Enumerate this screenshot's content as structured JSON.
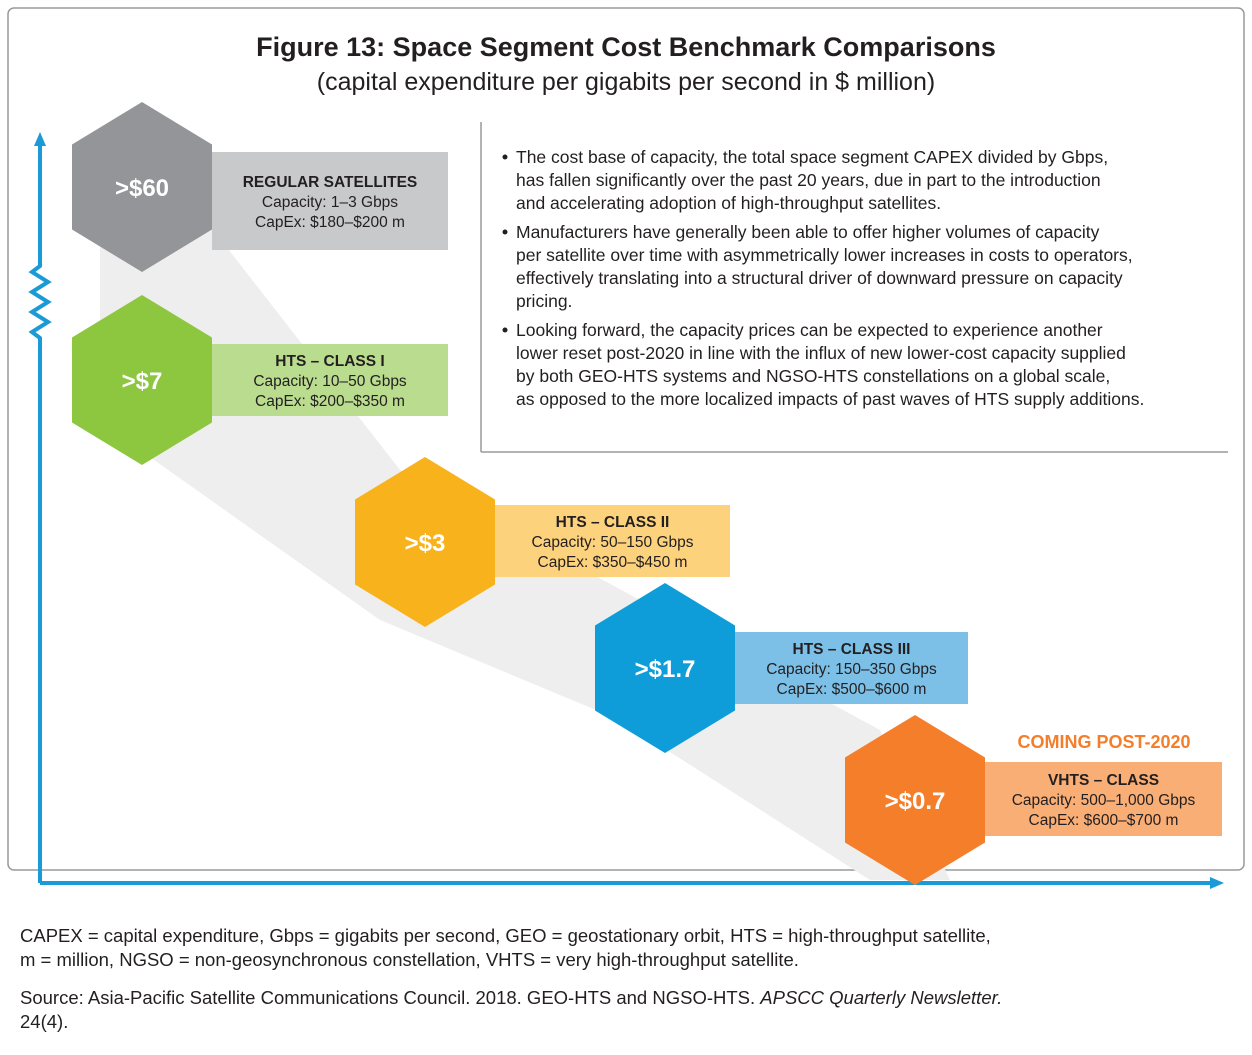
{
  "title": "Figure 13: Space Segment Cost Benchmark Comparisons",
  "subtitle": "(capital expenditure per gigabits per second in $ million)",
  "items": [
    {
      "value": ">$60",
      "name": "REGULAR SATELLITES",
      "capacity": "Capacity: 1–3 Gbps",
      "capex": "CapEx: $180–$200 m"
    },
    {
      "value": ">$7",
      "name": "HTS – CLASS I",
      "capacity": "Capacity: 10–50 Gbps",
      "capex": "CapEx: $200–$350 m"
    },
    {
      "value": ">$3",
      "name": "HTS – CLASS II",
      "capacity": "Capacity: 50–150 Gbps",
      "capex": "CapEx: $350–$450 m"
    },
    {
      "value": ">$1.7",
      "name": "HTS – CLASS III",
      "capacity": "Capacity: 150–350 Gbps",
      "capex": "CapEx: $500–$600 m"
    },
    {
      "value": ">$0.7",
      "name": "VHTS – CLASS",
      "capacity": "Capacity: 500–1,000 Gbps",
      "capex": "CapEx: $600–$700 m"
    }
  ],
  "coming": "COMING POST-2020",
  "bullets": [
    [
      "The cost base of capacity, the total space segment CAPEX divided by Gbps,",
      "has fallen significantly over the past 20 years, due in part to the introduction",
      "and accelerating adoption of high-throughput satellites."
    ],
    [
      "Manufacturers have generally been able to offer higher volumes of capacity",
      "per satellite over time with asymmetrically lower increases in costs to operators,",
      "effectively translating into a structural driver of downward pressure on capacity",
      "pricing."
    ],
    [
      "Looking forward, the capacity prices can be expected to experience another",
      "lower reset post-2020 in line with the influx of new lower-cost capacity supplied",
      "by both GEO-HTS systems and NGSO-HTS constellations on a global scale,",
      "as opposed to the more localized impacts of past waves of HTS supply additions."
    ]
  ],
  "footnote": [
    "CAPEX = capital expenditure, Gbps = gigabits per second, GEO = geostationary orbit, HTS = high-throughput satellite,",
    "m = million, NGSO = non-geosynchronous constellation, VHTS = very high-throughput satellite."
  ],
  "source": {
    "text": "Source: Asia-Pacific Satellite Communications Council. 2018. GEO-HTS and NGSO-HTS. ",
    "journal": "APSCC Quarterly Newsletter.",
    "issue": "24(4)."
  }
}
